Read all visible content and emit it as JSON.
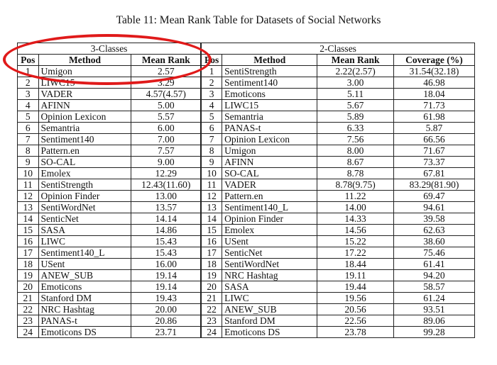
{
  "caption": "Table 11: Mean Rank Table for Datasets of Social Networks",
  "left_group": "3-Classes",
  "right_group": "2-Classes",
  "left_headers": [
    "Pos",
    "Method",
    "Mean Rank"
  ],
  "right_headers": [
    "Pos",
    "Method",
    "Mean Rank",
    "Coverage (%)"
  ],
  "left_rows": [
    [
      "1",
      "Umigon",
      "2.57"
    ],
    [
      "2",
      "LIWC15",
      "3.29"
    ],
    [
      "3",
      "VADER",
      "4.57(4.57)"
    ],
    [
      "4",
      "AFINN",
      "5.00"
    ],
    [
      "5",
      "Opinion Lexicon",
      "5.57"
    ],
    [
      "6",
      "Semantria",
      "6.00"
    ],
    [
      "7",
      "Sentiment140",
      "7.00"
    ],
    [
      "8",
      "Pattern.en",
      "7.57"
    ],
    [
      "9",
      "SO-CAL",
      "9.00"
    ],
    [
      "10",
      "Emolex",
      "12.29"
    ],
    [
      "11",
      "SentiStrength",
      "12.43(11.60)"
    ],
    [
      "12",
      "Opinion Finder",
      "13.00"
    ],
    [
      "13",
      "SentiWordNet",
      "13.57"
    ],
    [
      "14",
      "SenticNet",
      "14.14"
    ],
    [
      "15",
      "SASA",
      "14.86"
    ],
    [
      "16",
      "LIWC",
      "15.43"
    ],
    [
      "17",
      "Sentiment140_L",
      "15.43"
    ],
    [
      "18",
      "USent",
      "16.00"
    ],
    [
      "19",
      "ANEW_SUB",
      "19.14"
    ],
    [
      "20",
      "Emoticons",
      "19.14"
    ],
    [
      "21",
      "Stanford DM",
      "19.43"
    ],
    [
      "22",
      "NRC Hashtag",
      "20.00"
    ],
    [
      "23",
      "PANAS-t",
      "20.86"
    ],
    [
      "24",
      "Emoticons DS",
      "23.71"
    ]
  ],
  "right_rows": [
    [
      "1",
      "SentiStrength",
      "2.22(2.57)",
      "31.54(32.18)"
    ],
    [
      "2",
      "Sentiment140",
      "3.00",
      "46.98"
    ],
    [
      "3",
      "Emoticons",
      "5.11",
      "18.04"
    ],
    [
      "4",
      "LIWC15",
      "5.67",
      "71.73"
    ],
    [
      "5",
      "Semantria",
      "5.89",
      "61.98"
    ],
    [
      "6",
      "PANAS-t",
      "6.33",
      "5.87"
    ],
    [
      "7",
      "Opinion Lexicon",
      "7.56",
      "66.56"
    ],
    [
      "8",
      "Umigon",
      "8.00",
      "71.67"
    ],
    [
      "9",
      "AFINN",
      "8.67",
      "73.37"
    ],
    [
      "10",
      "SO-CAL",
      "8.78",
      "67.81"
    ],
    [
      "11",
      "VADER",
      "8.78(9.75)",
      "83.29(81.90)"
    ],
    [
      "12",
      "Pattern.en",
      "11.22",
      "69.47"
    ],
    [
      "13",
      "Sentiment140_L",
      "14.00",
      "94.61"
    ],
    [
      "14",
      "Opinion Finder",
      "14.33",
      "39.58"
    ],
    [
      "15",
      "Emolex",
      "14.56",
      "62.63"
    ],
    [
      "16",
      "USent",
      "15.22",
      "38.60"
    ],
    [
      "17",
      "SenticNet",
      "17.22",
      "75.46"
    ],
    [
      "18",
      "SentiWordNet",
      "18.44",
      "61.41"
    ],
    [
      "19",
      "NRC Hashtag",
      "19.11",
      "94.20"
    ],
    [
      "20",
      "SASA",
      "19.44",
      "58.57"
    ],
    [
      "21",
      "LIWC",
      "19.56",
      "61.24"
    ],
    [
      "22",
      "ANEW_SUB",
      "20.56",
      "93.51"
    ],
    [
      "23",
      "Stanford DM",
      "22.56",
      "89.06"
    ],
    [
      "24",
      "Emoticons DS",
      "23.78",
      "99.28"
    ]
  ],
  "highlight_color": "#e01a1a"
}
